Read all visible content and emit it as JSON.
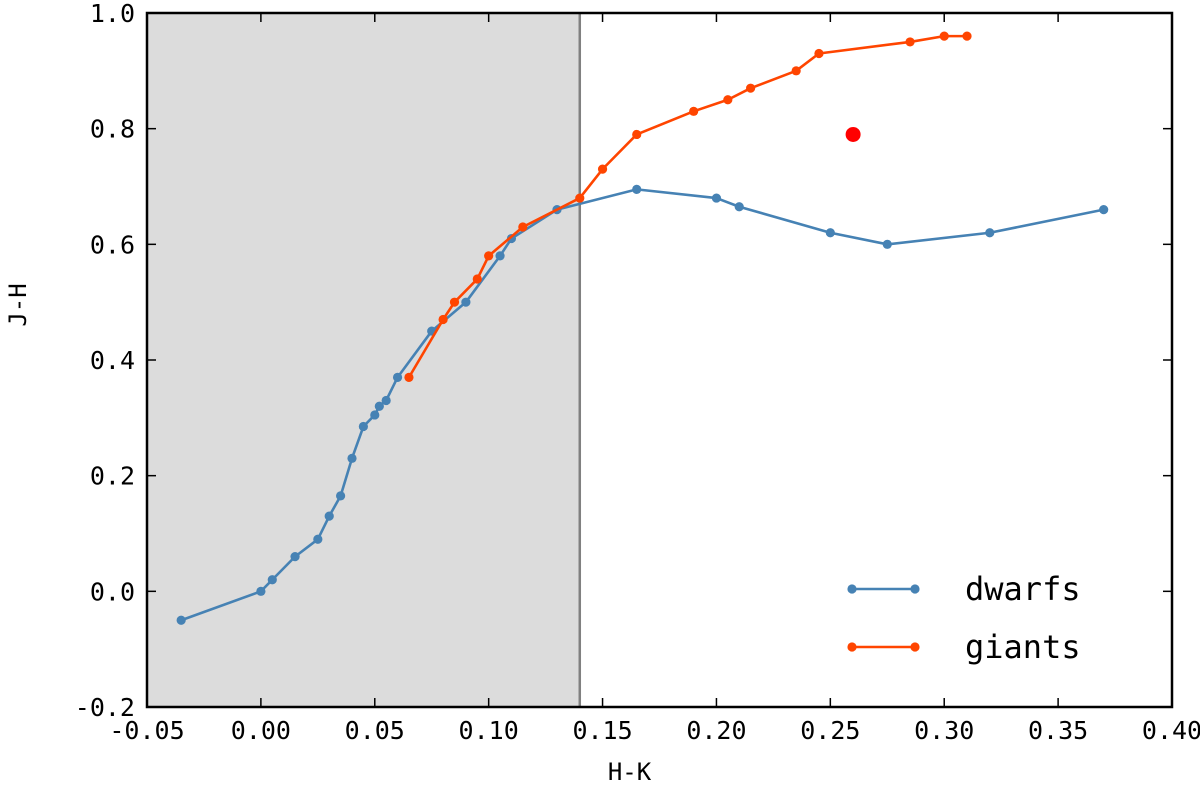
{
  "chart_data": {
    "type": "line",
    "title": "",
    "xlabel": "H-K",
    "ylabel": "J-H",
    "xlim": [
      -0.05,
      0.4
    ],
    "ylim": [
      -0.2,
      1.0
    ],
    "xticks": [
      "-0.05",
      "0.00",
      "0.05",
      "0.10",
      "0.15",
      "0.20",
      "0.25",
      "0.30",
      "0.35",
      "0.40"
    ],
    "yticks": [
      "-0.2",
      "0.0",
      "0.2",
      "0.4",
      "0.6",
      "0.8",
      "1.0"
    ],
    "grid": false,
    "legend_position": "bottom-right",
    "shaded_region": {
      "x_from": -0.05,
      "x_to": 0.14,
      "color": "#dcdcdc"
    },
    "vertical_line": {
      "x": 0.14,
      "color": "#808080"
    },
    "series": [
      {
        "name": "dwarfs",
        "color": "#4682b4",
        "points": [
          [
            -0.035,
            -0.05
          ],
          [
            0.0,
            0.0
          ],
          [
            0.005,
            0.02
          ],
          [
            0.015,
            0.06
          ],
          [
            0.025,
            0.09
          ],
          [
            0.03,
            0.13
          ],
          [
            0.035,
            0.165
          ],
          [
            0.04,
            0.23
          ],
          [
            0.045,
            0.285
          ],
          [
            0.05,
            0.305
          ],
          [
            0.052,
            0.32
          ],
          [
            0.055,
            0.33
          ],
          [
            0.06,
            0.37
          ],
          [
            0.075,
            0.45
          ],
          [
            0.09,
            0.5
          ],
          [
            0.105,
            0.58
          ],
          [
            0.11,
            0.61
          ],
          [
            0.13,
            0.66
          ],
          [
            0.165,
            0.695
          ],
          [
            0.2,
            0.68
          ],
          [
            0.21,
            0.665
          ],
          [
            0.25,
            0.62
          ],
          [
            0.275,
            0.6
          ],
          [
            0.32,
            0.62
          ],
          [
            0.37,
            0.66
          ]
        ]
      },
      {
        "name": "giants",
        "color": "#ff4500",
        "points": [
          [
            0.065,
            0.37
          ],
          [
            0.08,
            0.47
          ],
          [
            0.085,
            0.5
          ],
          [
            0.095,
            0.54
          ],
          [
            0.1,
            0.58
          ],
          [
            0.115,
            0.63
          ],
          [
            0.14,
            0.68
          ],
          [
            0.15,
            0.73
          ],
          [
            0.165,
            0.79
          ],
          [
            0.19,
            0.83
          ],
          [
            0.205,
            0.85
          ],
          [
            0.215,
            0.87
          ],
          [
            0.235,
            0.9
          ],
          [
            0.245,
            0.93
          ],
          [
            0.285,
            0.95
          ],
          [
            0.3,
            0.96
          ],
          [
            0.31,
            0.96
          ]
        ]
      }
    ],
    "highlight_point": {
      "x": 0.26,
      "y": 0.79,
      "color": "#ff0000"
    }
  }
}
